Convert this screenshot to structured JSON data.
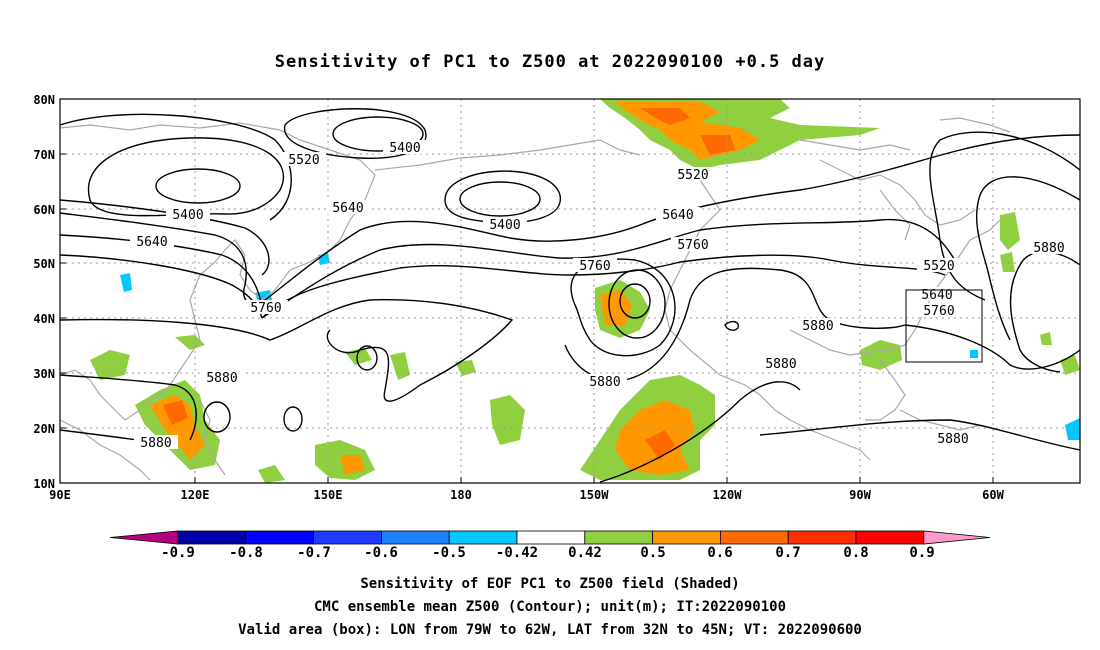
{
  "title": "Sensitivity of PC1 to Z500 at 2022090100 +0.5 day",
  "lat_labels": [
    "80N",
    "70N",
    "60N",
    "50N",
    "40N",
    "30N",
    "20N",
    "10N"
  ],
  "lon_labels": [
    "90E",
    "120E",
    "150E",
    "180",
    "150W",
    "120W",
    "90W",
    "60W"
  ],
  "contour_labels": [
    {
      "text": "5400",
      "name": "contour-label-5400-nw"
    },
    {
      "text": "5520",
      "name": "contour-label-5520-nw"
    },
    {
      "text": "5400",
      "name": "contour-label-5400-w"
    },
    {
      "text": "5640",
      "name": "contour-label-5640-w"
    },
    {
      "text": "5640",
      "name": "contour-label-5640-c"
    },
    {
      "text": "5760",
      "name": "contour-label-5760-w"
    },
    {
      "text": "5880",
      "name": "contour-label-5880-w"
    },
    {
      "text": "5880",
      "name": "contour-label-5880-sw"
    },
    {
      "text": "5400",
      "name": "contour-label-5400-c"
    },
    {
      "text": "5520",
      "name": "contour-label-5520-ne"
    },
    {
      "text": "5640",
      "name": "contour-label-5640-ne"
    },
    {
      "text": "5760",
      "name": "contour-label-5760-ne"
    },
    {
      "text": "5760",
      "name": "contour-label-5760-c"
    },
    {
      "text": "5880",
      "name": "contour-label-5880-c"
    },
    {
      "text": "5880",
      "name": "contour-label-5880-e"
    },
    {
      "text": "5880",
      "name": "contour-label-5880-se"
    },
    {
      "text": "5520",
      "name": "contour-label-5520-e"
    },
    {
      "text": "5640",
      "name": "contour-label-5640-box"
    },
    {
      "text": "5760",
      "name": "contour-label-5760-box"
    },
    {
      "text": "5880",
      "name": "contour-label-5880-far-e"
    },
    {
      "text": "5880",
      "name": "contour-label-5880-s"
    }
  ],
  "colorbar": {
    "labels": [
      "-0.9",
      "-0.8",
      "-0.7",
      "-0.6",
      "-0.5",
      "-0.42",
      "0.42",
      "0.5",
      "0.6",
      "0.7",
      "0.8",
      "0.9"
    ],
    "colors": [
      "#b4007f",
      "#0000a8",
      "#0000ff",
      "#1e3cff",
      "#1e82ff",
      "#00c8ff",
      "#ffffff",
      "#90d040",
      "#ff9800",
      "#ff6a00",
      "#ff3000",
      "#ff0000",
      "#ff99cc"
    ]
  },
  "caption": {
    "line1": "Sensitivity of EOF PC1 to Z500 field (Shaded)",
    "line2": "CMC ensemble mean Z500 (Contour); unit(m); IT:2022090100",
    "line3": "Valid area (box): LON from 79W to 62W, LAT from 32N to 45N; VT: 2022090600"
  },
  "colors": {
    "coast": "#a8a8a8",
    "grid": "#9a9a9a",
    "contour": "#000000",
    "green": "#90d040",
    "orange": "#ff9800",
    "dark_orange": "#ff6a00"
  }
}
